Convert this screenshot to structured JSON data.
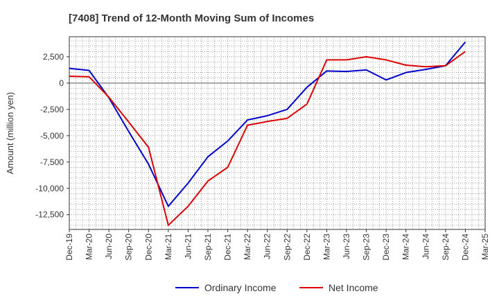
{
  "chart_data": {
    "type": "line",
    "title": "[7408]  Trend of 12-Month Moving Sum of Incomes",
    "xlabel": "",
    "ylabel": "Amount (million yen)",
    "ylim": [
      -13900,
      4400
    ],
    "yticks": [
      2500,
      0,
      -2500,
      -5000,
      -7500,
      -10000,
      -12500
    ],
    "ytick_labels": [
      "2,500",
      "0",
      "-2,500",
      "-5,000",
      "-7,500",
      "-10,000",
      "-12,500"
    ],
    "categories": [
      "Dec-19",
      "Mar-20",
      "Jun-20",
      "Sep-20",
      "Dec-20",
      "Mar-21",
      "Jun-21",
      "Sep-21",
      "Dec-21",
      "Mar-22",
      "Jun-22",
      "Sep-22",
      "Dec-22",
      "Mar-23",
      "Jun-23",
      "Sep-23",
      "Dec-23",
      "Mar-24",
      "Jun-24",
      "Sep-24",
      "Dec-24",
      "Mar-25"
    ],
    "grid": true,
    "legend_position": "bottom-center",
    "series": [
      {
        "name": "Ordinary Income",
        "color": "#0000cc",
        "values": [
          1400,
          1200,
          -1400,
          -4600,
          -7700,
          -11700,
          -9500,
          -7000,
          -5500,
          -3500,
          -3100,
          -2500,
          -400,
          1150,
          1100,
          1250,
          300,
          1000,
          1300,
          1650,
          3900,
          null
        ]
      },
      {
        "name": "Net Income",
        "color": "#dd0000",
        "values": [
          650,
          600,
          -1350,
          -3700,
          -6100,
          -13500,
          -11700,
          -9300,
          -8000,
          -4000,
          -3650,
          -3350,
          -2000,
          2200,
          2200,
          2500,
          2200,
          1700,
          1550,
          1650,
          3000,
          null
        ]
      }
    ]
  }
}
